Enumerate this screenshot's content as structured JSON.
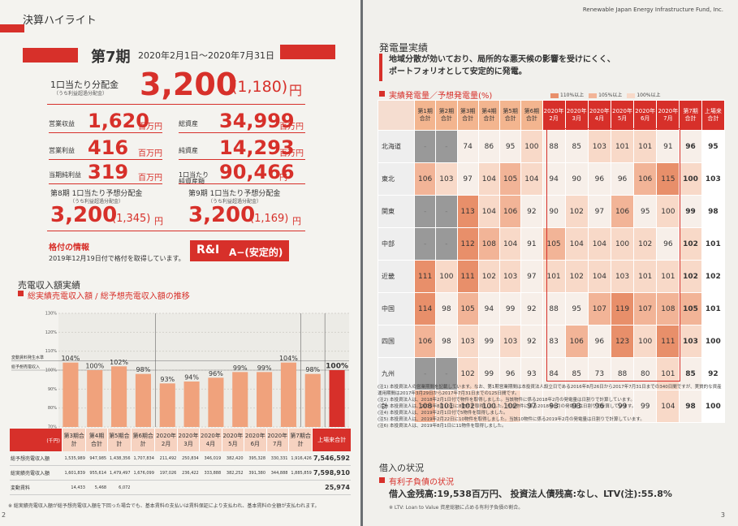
{
  "left": {
    "section": "決算ハイライト",
    "period_label": "第7期",
    "period": "2020年2月1日～2020年7月31日",
    "dpu_label": "1口当たり分配金",
    "dpu_note": "（うち利益超過分配金）",
    "dpu_value": "3,200",
    "dpu_sub": "(1,180)",
    "dpu_unit": "円",
    "metrics": [
      {
        "label": "営業収益",
        "value": "1,620",
        "unit": "百万円"
      },
      {
        "label": "総資産",
        "value": "34,999",
        "unit": "百万円"
      },
      {
        "label": "営業利益",
        "value": "416",
        "unit": "百万円"
      },
      {
        "label": "純資産",
        "value": "14,293",
        "unit": "百万円"
      },
      {
        "label": "当期純利益",
        "value": "319",
        "unit": "百万円"
      },
      {
        "label": "1口当たり純資産額",
        "value": "90,466",
        "unit": "円"
      }
    ],
    "forecasts": [
      {
        "label": "第8期 1口当たり予想分配金",
        "note": "（うち利益超過分配金）",
        "value": "3,200",
        "sub": "(1,345)",
        "unit": "円"
      },
      {
        "label": "第9期 1口当たり予想分配金",
        "note": "（うち利益超過分配金）",
        "value": "3,200",
        "sub": "(1,169)",
        "unit": "円"
      }
    ],
    "rating_title": "格付の情報",
    "rating_text": "2019年12月19日付で格付を取得しています。",
    "rating_agency": "R&I",
    "rating": "A−(安定的)",
    "chart_section": "売電収入額実績",
    "chart_title": "総実績売電収入額 / 総予想売電収入額の推移",
    "chart": {
      "type": "bar",
      "categories": [
        "第3期合計",
        "第4期合計",
        "第5期合計",
        "第6期合計",
        "2020年2月",
        "2020年3月",
        "2020年4月",
        "2020年5月",
        "2020年6月",
        "2020年7月",
        "第7期合計",
        "上場来合計"
      ],
      "values": [
        104,
        100,
        102,
        98,
        93,
        94,
        96,
        99,
        99,
        104,
        98,
        100
      ],
      "value_labels": [
        "104%",
        "100%",
        "102%",
        "98%",
        "93%",
        "94%",
        "96%",
        "99%",
        "99%",
        "104%",
        "98%",
        "100%"
      ],
      "colors": [
        "#f0a27c",
        "#f0a27c",
        "#f0a27c",
        "#f0a27c",
        "#f0a27c",
        "#f0a27c",
        "#f0a27c",
        "#f0a27c",
        "#f0a27c",
        "#f0a27c",
        "#f0a27c",
        "#d7302a"
      ],
      "ylim": [
        70,
        130
      ],
      "yticks": [
        {
          "value": 70,
          "label": "70%"
        },
        {
          "value": 80,
          "label": "80%"
        },
        {
          "value": 90,
          "label": "90%"
        },
        {
          "value": 100,
          "label": "100%"
        },
        {
          "value": 110,
          "label": "110%"
        },
        {
          "value": 120,
          "label": "120%"
        },
        {
          "value": 130,
          "label": "130%"
        }
      ],
      "reference_lines": [
        {
          "label": "変動賃料発生水準",
          "value": 105
        },
        {
          "label": "総予想売電収入",
          "value": 100
        }
      ]
    },
    "table": {
      "unit": "(千円)",
      "rows": [
        {
          "label": "総予想売電収入額",
          "cells": [
            "1,535,989",
            "947,985",
            "1,438,356",
            "1,707,834",
            "211,492",
            "250,834",
            "346,019",
            "382,420",
            "395,328",
            "330,331",
            "1,916,426",
            "7,546,592"
          ]
        },
        {
          "label": "総実績売電収入額",
          "cells": [
            "1,601,839",
            "955,614",
            "1,479,497",
            "1,676,099",
            "197,026",
            "236,422",
            "333,888",
            "382,252",
            "391,380",
            "344,888",
            "1,885,859",
            "7,598,910"
          ]
        },
        {
          "label": "変動賃料",
          "cells": [
            "14,433",
            "5,468",
            "6,072",
            null,
            null,
            null,
            null,
            null,
            null,
            null,
            null,
            "25,974"
          ]
        }
      ]
    },
    "footnote": "※ 総実績売電収入額が総予想売電収入額を下回った場合でも、基本賃料の支払いは賃料保証により支払われ、基本賃料の全額が支払われます。",
    "page": "2"
  },
  "right": {
    "header": "Renewable Japan Energy Infrastructure Fund, Inc.",
    "section": "発電量実績",
    "highlight": [
      "地域分散が効いており、局所的な悪天候の影響を受けにくく、",
      "ポートフォリオとして安定的に発電。"
    ],
    "table_title": "実績発電量／予想発電量(%)",
    "legend": [
      "110%以上",
      "105%以上",
      "100%以上"
    ],
    "columns": [
      "第1期合計",
      "第2期合計",
      "第3期合計",
      "第4期合計",
      "第5期合計",
      "第6期合計",
      "2020年2月",
      "2020年3月",
      "2020年4月",
      "2020年5月",
      "2020年6月",
      "2020年7月",
      "第7期合計",
      "上場来合計"
    ],
    "rows": [
      {
        "region": "北海道",
        "values": [
          "-",
          "-",
          74,
          86,
          95,
          100,
          88,
          85,
          103,
          101,
          101,
          91,
          96,
          95
        ]
      },
      {
        "region": "東北",
        "values": [
          106,
          103,
          97,
          104,
          105,
          104,
          94,
          90,
          96,
          96,
          106,
          115,
          100,
          103
        ]
      },
      {
        "region": "関東",
        "values": [
          "-",
          "-",
          113,
          104,
          106,
          92,
          90,
          102,
          97,
          106,
          95,
          100,
          99,
          98
        ]
      },
      {
        "region": "中部",
        "values": [
          "-",
          "-",
          112,
          108,
          104,
          91,
          105,
          104,
          104,
          100,
          102,
          96,
          102,
          101
        ]
      },
      {
        "region": "近畿",
        "values": [
          111,
          100,
          111,
          102,
          103,
          97,
          101,
          102,
          104,
          103,
          101,
          101,
          102,
          102
        ]
      },
      {
        "region": "中国",
        "values": [
          114,
          98,
          105,
          94,
          99,
          92,
          88,
          95,
          107,
          119,
          107,
          108,
          105,
          101
        ]
      },
      {
        "region": "四国",
        "values": [
          106,
          98,
          103,
          99,
          103,
          92,
          83,
          106,
          96,
          123,
          100,
          111,
          103,
          100
        ]
      },
      {
        "region": "九州",
        "values": [
          "-",
          "-",
          102,
          99,
          96,
          93,
          84,
          85,
          73,
          88,
          80,
          101,
          85,
          92
        ]
      },
      {
        "region": "計",
        "values": [
          108,
          101,
          102,
          100,
          102,
          97,
          93,
          93,
          96,
          99,
          99,
          104,
          98,
          100
        ]
      }
    ],
    "notes": [
      "(注1) 本投資法人の営業期間を記載しています。なお、第1期営業期間は本投資法人設立日である2016年8月26日から2017年7月31日までの340日間ですが、実質的な資産運用期間は2017年3月29日から2017年7月31日までの125日間です。",
      "(注2) 本投資法人は、2018年2月1日付で物件を取得しました。当該物件に係る2018年2月の発電量は日割りで計算しています。",
      "(注3) 本投資法人は、2018年8月10日に8物件を取得しました。当該物件に係る2018年8月の発電量は日割りで計算しています。",
      "(注4) 本投資法人は、2019年2月1日付で5物件を取得しました。",
      "(注5) 本投資法人は、2019年2月22日に10物件を取得しました。当該10物件に係る2019年2月の発電量は日割りで計算しています。",
      "(注6) 本投資法人は、2019年8月1日に11物件を取得しました。"
    ],
    "debt_section": "借入の状況",
    "debt_title": "有利子負債の状況",
    "debt_text": "借入金残高:19,538百万円、 投資法人債残高:なし、LTV(注):55.8%",
    "debt_note": "※ LTV: Loan to Value 資産総額に占める有利子負債の割合。",
    "page": "3"
  }
}
